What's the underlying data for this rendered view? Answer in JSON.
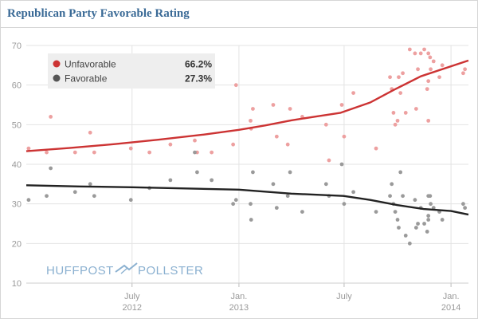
{
  "title": "Republican Party Favorable Rating",
  "branding": {
    "left": "HUFFPOST",
    "right": "POLLSTER",
    "icon": "pollster-logo-icon"
  },
  "colors": {
    "unfavorable": "#cc3333",
    "unfavorable_points": "#eda0a0",
    "favorable": "#222222",
    "favorable_points": "#9a9a9a",
    "title": "#3a6a96",
    "brand": "#8ab0d0",
    "axis_text": "#999999",
    "grid": "#e3e3e3"
  },
  "chart_data": {
    "type": "scatter",
    "title": "Republican Party Favorable Rating",
    "xlabel": "",
    "ylabel": "",
    "xlim": [
      "2012-01-01",
      "2014-01-31"
    ],
    "ylim": [
      10,
      70
    ],
    "y_ticks": [
      10,
      20,
      30,
      40,
      50,
      60,
      70
    ],
    "x_ticks": [
      {
        "date": "2012-07-01",
        "line1": "July",
        "line2": "2012"
      },
      {
        "date": "2013-01-01",
        "line1": "Jan.",
        "line2": "2013"
      },
      {
        "date": "2013-07-01",
        "line1": "July",
        "line2": ""
      },
      {
        "date": "2014-01-01",
        "line1": "Jan.",
        "line2": "2014"
      }
    ],
    "grid": true,
    "legend": {
      "position": "top-left",
      "entries": [
        {
          "label": "Unfavorable",
          "value": "66.2%"
        },
        {
          "label": "Favorable",
          "value": "27.3%"
        }
      ]
    },
    "series": [
      {
        "name": "Unfavorable",
        "trend": [
          [
            "2012-01-01",
            43.3
          ],
          [
            "2012-03-15",
            44.1
          ],
          [
            "2012-06-01",
            45.1
          ],
          [
            "2012-08-15",
            46.2
          ],
          [
            "2012-11-01",
            47.5
          ],
          [
            "2013-01-01",
            48.7
          ],
          [
            "2013-02-15",
            49.8
          ],
          [
            "2013-04-01",
            51.1
          ],
          [
            "2013-05-15",
            52.1
          ],
          [
            "2013-06-25",
            53.0
          ],
          [
            "2013-08-15",
            55.6
          ],
          [
            "2013-09-25",
            58.8
          ],
          [
            "2013-11-10",
            62.2
          ],
          [
            "2014-01-31",
            66.2
          ]
        ],
        "points": [
          [
            "2012-01-05",
            44
          ],
          [
            "2012-02-05",
            43
          ],
          [
            "2012-02-12",
            52
          ],
          [
            "2012-03-25",
            43
          ],
          [
            "2012-04-20",
            48
          ],
          [
            "2012-04-27",
            43
          ],
          [
            "2012-06-29",
            44
          ],
          [
            "2012-07-31",
            43
          ],
          [
            "2012-09-05",
            45
          ],
          [
            "2012-10-17",
            46
          ],
          [
            "2012-10-21",
            43
          ],
          [
            "2012-11-15",
            43
          ],
          [
            "2012-12-22",
            45
          ],
          [
            "2012-12-27",
            60
          ],
          [
            "2013-01-21",
            51
          ],
          [
            "2013-01-25",
            54
          ],
          [
            "2013-01-22",
            49
          ],
          [
            "2013-03-01",
            55
          ],
          [
            "2013-03-07",
            47
          ],
          [
            "2013-03-26",
            45
          ],
          [
            "2013-03-30",
            54
          ],
          [
            "2013-04-20",
            52
          ],
          [
            "2013-05-31",
            50
          ],
          [
            "2013-06-05",
            41
          ],
          [
            "2013-06-27",
            55
          ],
          [
            "2013-07-01",
            47
          ],
          [
            "2013-07-17",
            58
          ],
          [
            "2013-08-25",
            44
          ],
          [
            "2013-09-18",
            62
          ],
          [
            "2013-09-21",
            59
          ],
          [
            "2013-09-24",
            53
          ],
          [
            "2013-09-27",
            50
          ],
          [
            "2013-10-01",
            51
          ],
          [
            "2013-10-03",
            62
          ],
          [
            "2013-10-06",
            58
          ],
          [
            "2013-10-10",
            63
          ],
          [
            "2013-10-15",
            53
          ],
          [
            "2013-10-22",
            69
          ],
          [
            "2013-10-31",
            68
          ],
          [
            "2013-11-02",
            54
          ],
          [
            "2013-11-05",
            64
          ],
          [
            "2013-11-10",
            68
          ],
          [
            "2013-11-16",
            69
          ],
          [
            "2013-11-21",
            59
          ],
          [
            "2013-11-23",
            51
          ],
          [
            "2013-11-23",
            68
          ],
          [
            "2013-11-23",
            61
          ],
          [
            "2013-11-26",
            67
          ],
          [
            "2013-11-27",
            64
          ],
          [
            "2013-12-02",
            66
          ],
          [
            "2013-12-12",
            62
          ],
          [
            "2013-12-17",
            65
          ],
          [
            "2014-01-22",
            63
          ],
          [
            "2014-01-25",
            64
          ]
        ]
      },
      {
        "name": "Favorable",
        "trend": [
          [
            "2012-01-01",
            34.7
          ],
          [
            "2012-04-01",
            34.4
          ],
          [
            "2012-07-01",
            34.2
          ],
          [
            "2012-10-01",
            33.9
          ],
          [
            "2013-01-01",
            33.6
          ],
          [
            "2013-04-01",
            32.6
          ],
          [
            "2013-06-30",
            32.0
          ],
          [
            "2013-08-15",
            31.0
          ],
          [
            "2013-10-01",
            29.7
          ],
          [
            "2013-11-15",
            28.7
          ],
          [
            "2014-01-01",
            28.2
          ],
          [
            "2014-01-31",
            27.3
          ]
        ],
        "points": [
          [
            "2012-01-05",
            31
          ],
          [
            "2012-02-05",
            32
          ],
          [
            "2012-02-12",
            39
          ],
          [
            "2012-03-25",
            33
          ],
          [
            "2012-04-20",
            35
          ],
          [
            "2012-04-27",
            32
          ],
          [
            "2012-06-29",
            31
          ],
          [
            "2012-07-31",
            34
          ],
          [
            "2012-09-05",
            36
          ],
          [
            "2012-10-17",
            43
          ],
          [
            "2012-10-21",
            38
          ],
          [
            "2012-11-15",
            36
          ],
          [
            "2012-12-22",
            30
          ],
          [
            "2012-12-27",
            31
          ],
          [
            "2013-01-21",
            30
          ],
          [
            "2013-01-25",
            38
          ],
          [
            "2013-01-22",
            26
          ],
          [
            "2013-03-01",
            35
          ],
          [
            "2013-03-07",
            29
          ],
          [
            "2013-03-26",
            32
          ],
          [
            "2013-03-30",
            38
          ],
          [
            "2013-04-20",
            28
          ],
          [
            "2013-05-31",
            35
          ],
          [
            "2013-06-05",
            32
          ],
          [
            "2013-06-27",
            40
          ],
          [
            "2013-07-01",
            30
          ],
          [
            "2013-07-17",
            33
          ],
          [
            "2013-08-25",
            28
          ],
          [
            "2013-09-18",
            32
          ],
          [
            "2013-09-21",
            35
          ],
          [
            "2013-09-24",
            30
          ],
          [
            "2013-09-27",
            28
          ],
          [
            "2013-10-01",
            26
          ],
          [
            "2013-10-03",
            24
          ],
          [
            "2013-10-06",
            38
          ],
          [
            "2013-10-10",
            32
          ],
          [
            "2013-10-15",
            22
          ],
          [
            "2013-10-22",
            20
          ],
          [
            "2013-10-31",
            31
          ],
          [
            "2013-11-02",
            24
          ],
          [
            "2013-11-05",
            25
          ],
          [
            "2013-11-10",
            29
          ],
          [
            "2013-11-16",
            25
          ],
          [
            "2013-11-21",
            23
          ],
          [
            "2013-11-23",
            32
          ],
          [
            "2013-11-23",
            27
          ],
          [
            "2013-11-23",
            26
          ],
          [
            "2013-11-26",
            32
          ],
          [
            "2013-11-27",
            30
          ],
          [
            "2013-12-02",
            29
          ],
          [
            "2013-12-12",
            28
          ],
          [
            "2013-12-17",
            26
          ],
          [
            "2014-01-22",
            30
          ],
          [
            "2014-01-25",
            29
          ]
        ]
      }
    ]
  }
}
